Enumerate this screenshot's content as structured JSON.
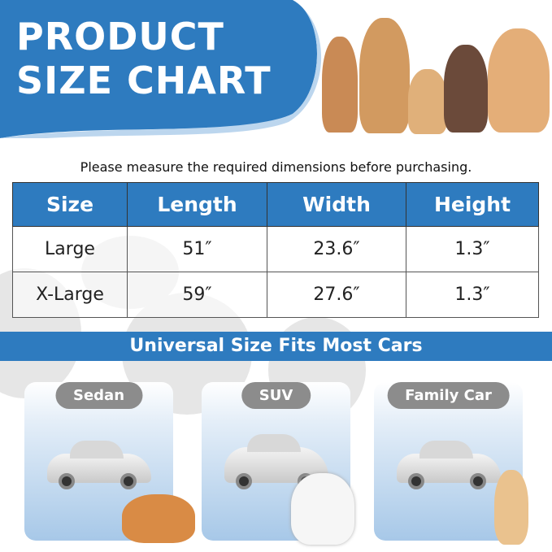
{
  "header": {
    "title_line1": "PRODUCT",
    "title_line2": "SIZE CHART"
  },
  "subtitle": "Please measure the required dimensions before purchasing.",
  "table": {
    "headers": [
      "Size",
      "Length",
      "Width",
      "Height"
    ],
    "rows": [
      [
        "Large",
        "51″",
        "23.6″",
        "1.3″"
      ],
      [
        "X-Large",
        "59″",
        "27.6″",
        "1.3″"
      ]
    ]
  },
  "banner": "Universal Size Fits Most Cars",
  "cars": [
    {
      "label": "Sedan"
    },
    {
      "label": "SUV"
    },
    {
      "label": "Family Car"
    }
  ],
  "colors": {
    "accent": "#2e7bbf",
    "pill": "#8c8c8c"
  }
}
